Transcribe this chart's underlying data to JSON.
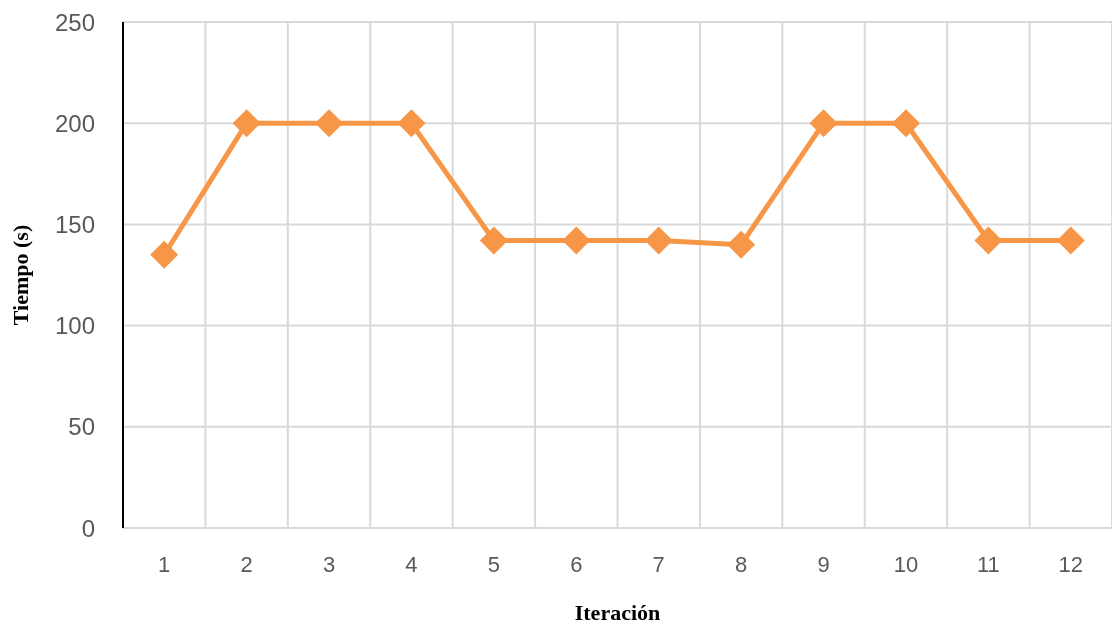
{
  "chart_data": {
    "type": "line",
    "xlabel": "Iteración",
    "ylabel": "Tiempo (s)",
    "categories": [
      "1",
      "2",
      "3",
      "4",
      "5",
      "6",
      "7",
      "8",
      "9",
      "10",
      "11",
      "12"
    ],
    "series": [
      {
        "color": "#f79646",
        "values": [
          135,
          200,
          200,
          200,
          142,
          142,
          142,
          140,
          200,
          200,
          142,
          142
        ]
      }
    ],
    "ylim": [
      0,
      250
    ],
    "yticks": [
      0,
      50,
      100,
      150,
      200,
      250
    ],
    "grid": true,
    "marker": "diamond",
    "line_style": "solid"
  }
}
